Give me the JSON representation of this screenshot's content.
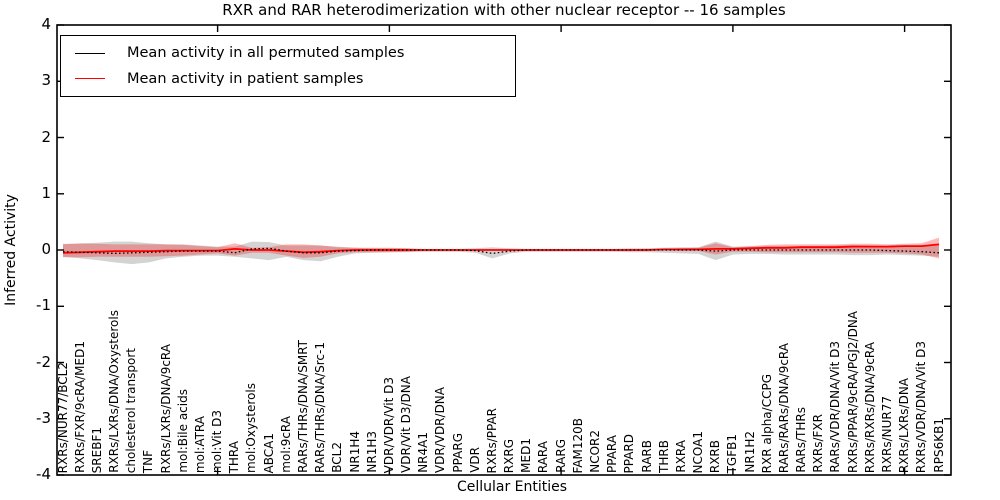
{
  "chart_data": {
    "type": "line",
    "title": "RXR and RAR heterodimerization with other nuclear receptor -- 16 samples",
    "xlabel": "Cellular Entities",
    "ylabel": "Inferred Activity",
    "ylim": [
      -4,
      4
    ],
    "yticks": [
      4,
      3,
      2,
      1,
      0,
      -1,
      -2,
      -3,
      -4
    ],
    "x_major_tick_indices": [
      9,
      19,
      29,
      39,
      49
    ],
    "grid": "off",
    "legend_position": "upper left",
    "frame_color": "#000000",
    "categories": [
      "RXRs/NUR77/BCL2",
      "RXRs/FXR/9cRA/MED1",
      "SREBF1",
      "RXRs/LXRs/DNA/Oxysterols",
      "cholesterol transport",
      "TNF",
      "RXRs/LXRs/DNA/9cRA",
      "mol:Bile acids",
      "mol:ATRA",
      "mol:Vit D3",
      "THRA",
      "mol:Oxysterols",
      "ABCA1",
      "mol:9cRA",
      "RARs/THRs/DNA/SMRT",
      "RARs/THRs/DNA/Src-1",
      "BCL2",
      "NR1H4",
      "NR1H3",
      "VDR/VDR/Vit D3",
      "VDR/Vit D3/DNA",
      "NR4A1",
      "VDR/VDR/DNA",
      "PPARG",
      "VDR",
      "RXRs/PPAR",
      "RXRG",
      "MED1",
      "RARA",
      "RARG",
      "FAM120B",
      "NCOR2",
      "PPARA",
      "PPARD",
      "RARB",
      "THRB",
      "RXRA",
      "NCOA1",
      "RXRB",
      "TGFB1",
      "NR1H2",
      "RXR alpha/CCPG",
      "RARs/RARs/DNA/9cRA",
      "RARs/THRs",
      "RXRs/FXR",
      "RARs/VDR/DNA/Vit D3",
      "RXRs/PPAR/9cRA/PGJ2/DNA",
      "RXRs/RXRs/DNA/9cRA",
      "RXRs/NUR77",
      "RXRs/LXRs/DNA",
      "RXRs/VDR/DNA/Vit D3",
      "RPS6KB1"
    ],
    "series": [
      {
        "name": "Mean activity in all permuted samples",
        "color": "#000000",
        "style": "dotted",
        "values": [
          -0.03,
          -0.04,
          -0.05,
          -0.06,
          -0.05,
          -0.04,
          -0.03,
          -0.02,
          -0.02,
          -0.02,
          -0.05,
          0.02,
          0.03,
          -0.02,
          -0.05,
          -0.05,
          -0.02,
          -0.01,
          0,
          0,
          0,
          0,
          0,
          0,
          -0.01,
          -0.06,
          -0.02,
          0,
          0,
          0,
          0,
          0,
          0,
          0,
          0,
          0,
          0,
          0,
          -0.02,
          0,
          0,
          0,
          0,
          0,
          0,
          0,
          0,
          0,
          -0.01,
          -0.02,
          -0.03,
          -0.05
        ]
      },
      {
        "name": "Mean activity in patient samples",
        "color": "#ff0000",
        "style": "solid",
        "values": [
          -0.05,
          -0.04,
          -0.03,
          -0.02,
          -0.02,
          -0.02,
          -0.01,
          -0.01,
          -0.01,
          -0.01,
          0.02,
          0,
          0,
          -0.02,
          -0.04,
          -0.03,
          -0.01,
          0,
          0,
          0,
          0,
          0,
          0,
          0,
          0,
          0,
          0,
          0,
          0,
          0,
          0,
          0,
          0,
          0,
          0,
          0.01,
          0.01,
          0.01,
          0.02,
          0.02,
          0.03,
          0.04,
          0.04,
          0.05,
          0.05,
          0.05,
          0.06,
          0.06,
          0.06,
          0.07,
          0.07,
          0.1
        ]
      }
    ],
    "bands": [
      {
        "name": "permuted-samples-range",
        "color": "#808080",
        "opacity": 0.35,
        "upper": [
          0.1,
          0.12,
          0.13,
          0.15,
          0.15,
          0.12,
          0.1,
          0.1,
          0.08,
          0.06,
          0.06,
          0.15,
          0.14,
          0.08,
          0.08,
          0.08,
          0.06,
          0.04,
          0.03,
          0.03,
          0.03,
          0.02,
          0.02,
          0.02,
          0.03,
          0.05,
          0.03,
          0.02,
          0.02,
          0.02,
          0.02,
          0.02,
          0.02,
          0.03,
          0.03,
          0.04,
          0.05,
          0.05,
          0.15,
          0.06,
          0.06,
          0.07,
          0.07,
          0.07,
          0.07,
          0.08,
          0.09,
          0.08,
          0.07,
          0.07,
          0.08,
          0.1
        ],
        "lower": [
          -0.12,
          -0.15,
          -0.18,
          -0.22,
          -0.25,
          -0.22,
          -0.15,
          -0.12,
          -0.1,
          -0.1,
          -0.12,
          -0.15,
          -0.18,
          -0.12,
          -0.18,
          -0.2,
          -0.12,
          -0.06,
          -0.05,
          -0.04,
          -0.04,
          -0.03,
          -0.03,
          -0.03,
          -0.05,
          -0.15,
          -0.06,
          -0.03,
          -0.03,
          -0.03,
          -0.03,
          -0.03,
          -0.03,
          -0.04,
          -0.04,
          -0.05,
          -0.06,
          -0.07,
          -0.18,
          -0.08,
          -0.07,
          -0.07,
          -0.08,
          -0.08,
          -0.08,
          -0.08,
          -0.09,
          -0.09,
          -0.08,
          -0.09,
          -0.1,
          -0.12
        ]
      },
      {
        "name": "patient-samples-range",
        "color": "#ff0000",
        "opacity": 0.28,
        "upper": [
          0.11,
          0.11,
          0.11,
          0.1,
          0.1,
          0.1,
          0.1,
          0.09,
          0.07,
          0.05,
          0.12,
          0.04,
          0.05,
          0.1,
          0.1,
          0.08,
          0.05,
          0.04,
          0.04,
          0.04,
          0.03,
          0.01,
          0.01,
          0.01,
          0.01,
          0.01,
          0.01,
          0.01,
          0.01,
          0.01,
          0.01,
          0.01,
          0.01,
          0.01,
          0.02,
          0.02,
          0.03,
          0.04,
          0.12,
          0.05,
          0.07,
          0.09,
          0.1,
          0.1,
          0.1,
          0.1,
          0.11,
          0.11,
          0.1,
          0.11,
          0.12,
          0.22
        ],
        "lower": [
          -0.13,
          -0.13,
          -0.12,
          -0.12,
          -0.12,
          -0.12,
          -0.11,
          -0.1,
          -0.08,
          -0.06,
          -0.1,
          -0.05,
          -0.05,
          -0.1,
          -0.14,
          -0.12,
          -0.06,
          -0.04,
          -0.04,
          -0.04,
          -0.03,
          -0.01,
          -0.01,
          -0.01,
          -0.01,
          -0.01,
          -0.01,
          -0.01,
          -0.01,
          -0.01,
          -0.01,
          -0.01,
          -0.01,
          -0.01,
          -0.01,
          -0.01,
          -0.02,
          -0.02,
          -0.08,
          -0.03,
          -0.03,
          -0.04,
          -0.04,
          -0.04,
          -0.04,
          -0.04,
          -0.05,
          -0.05,
          -0.05,
          -0.06,
          -0.08,
          -0.15
        ]
      }
    ]
  }
}
